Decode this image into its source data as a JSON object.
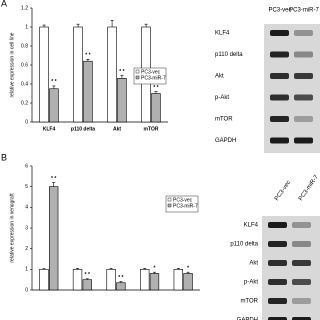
{
  "panel_labels": [
    "A",
    "B"
  ],
  "chart_data": [
    {
      "type": "bar",
      "y_label": "relative expression in cell line",
      "categories": [
        "KLF4",
        "p110 delta",
        "Akt",
        "mTOR"
      ],
      "series": [
        {
          "name": "PC3-vec",
          "color": "#ffffff",
          "values": [
            1.0,
            1.0,
            1.0,
            1.0
          ],
          "errors": [
            0.02,
            0.03,
            0.07,
            0.03
          ]
        },
        {
          "name": "PC3-miR-7",
          "color": "#b0b0b0",
          "values": [
            0.35,
            0.64,
            0.46,
            0.3
          ],
          "errors": [
            0.03,
            0.02,
            0.03,
            0.02
          ]
        }
      ],
      "annotations": [
        "* *",
        "* *",
        "* *",
        "* *"
      ],
      "ylim": [
        0,
        1.2
      ],
      "yticks": [
        0,
        0.2,
        0.4,
        0.6,
        0.8,
        1,
        1.2
      ],
      "legend": "upper right"
    },
    {
      "type": "bar",
      "y_label": "relative expression in xenograft",
      "categories": [
        null,
        null,
        null,
        null,
        null
      ],
      "series": [
        {
          "name": "PC3-vec",
          "color": "#ffffff",
          "values": [
            1,
            1,
            1,
            1,
            1
          ],
          "errors": [
            0.03,
            0.05,
            0.05,
            0.05,
            0.05
          ]
        },
        {
          "name": "PC3-miR-7",
          "color": "#b0b0b0",
          "values": [
            5.0,
            0.5,
            0.35,
            0.8,
            0.8
          ],
          "errors": [
            0.2,
            0.05,
            0.05,
            0.06,
            0.06
          ]
        }
      ],
      "annotations": [
        "* *",
        "* *",
        "* *",
        "*",
        "*"
      ],
      "ylim": [
        0,
        6
      ],
      "yticks": [
        0,
        1,
        2,
        3,
        4,
        5,
        6
      ],
      "legend": "upper right"
    }
  ],
  "blots": [
    {
      "columns": [
        "PC3-vec",
        "PC3-miR-7"
      ],
      "rows": [
        "KLF4",
        "p110 delta",
        "Akt",
        "p-Akt",
        "mTOR",
        "GAPDH"
      ]
    },
    {
      "columns": [
        "PC3-vec",
        "PC3-miR-7"
      ],
      "rows": [
        "KLF4",
        "p110 delta",
        "Akt",
        "p-Akt",
        "mTOR",
        "GAPDH"
      ]
    }
  ]
}
